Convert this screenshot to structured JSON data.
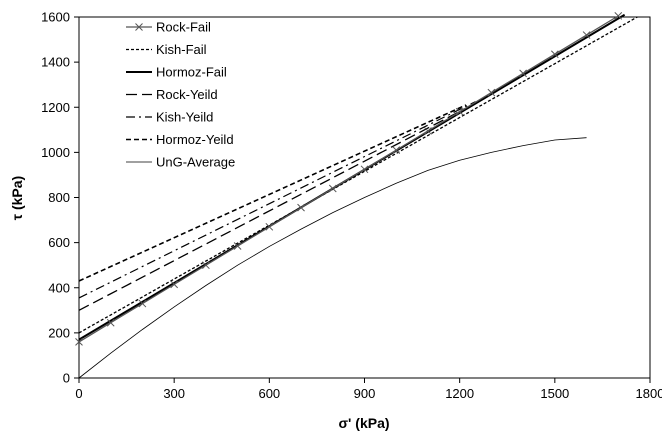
{
  "chart_data": {
    "type": "line",
    "xlabel": "σ' (kPa)",
    "ylabel": "τ (kPa)",
    "xlim": [
      0,
      1800
    ],
    "ylim": [
      0,
      1600
    ],
    "xticks": [
      "0",
      "300",
      "600",
      "900",
      "1200",
      "1500",
      "1800"
    ],
    "yticks": [
      "0",
      "200",
      "400",
      "600",
      "800",
      "1000",
      "1200",
      "1400",
      "1600"
    ],
    "grid": false,
    "legend_position": "top-left",
    "series": [
      {
        "name": "Rock-Fail",
        "style": "solid-cross",
        "x": [
          0,
          100,
          200,
          300,
          400,
          500,
          600,
          700,
          800,
          900,
          1000,
          1100,
          1200,
          1300,
          1400,
          1500,
          1600,
          1700
        ],
        "y": [
          160,
          245,
          330,
          415,
          500,
          585,
          670,
          755,
          840,
          925,
          1010,
          1095,
          1180,
          1265,
          1350,
          1435,
          1520,
          1605
        ]
      },
      {
        "name": "Kish-Fail",
        "style": "short-dash",
        "x": [
          0,
          1760
        ],
        "y": [
          200,
          1600
        ]
      },
      {
        "name": "Hormoz-Fail",
        "style": "solid-thick",
        "x": [
          0,
          1720
        ],
        "y": [
          170,
          1610
        ]
      },
      {
        "name": "Rock-Yeild",
        "style": "long-dash",
        "x": [
          0,
          1280
        ],
        "y": [
          300,
          1240
        ]
      },
      {
        "name": "Kish-Yeild",
        "style": "dash-dot",
        "x": [
          0,
          1250
        ],
        "y": [
          355,
          1225
        ]
      },
      {
        "name": "Hormoz-Yeild",
        "style": "medium-dash",
        "x": [
          0,
          1220
        ],
        "y": [
          430,
          1210
        ]
      },
      {
        "name": "UnG-Average",
        "style": "thin-solid",
        "x": [
          0,
          100,
          200,
          300,
          400,
          500,
          600,
          700,
          800,
          900,
          1000,
          1100,
          1200,
          1300,
          1400,
          1500,
          1600
        ],
        "y": [
          0,
          110,
          215,
          315,
          410,
          500,
          583,
          660,
          733,
          800,
          863,
          920,
          965,
          1000,
          1030,
          1055,
          1065
        ]
      }
    ]
  }
}
